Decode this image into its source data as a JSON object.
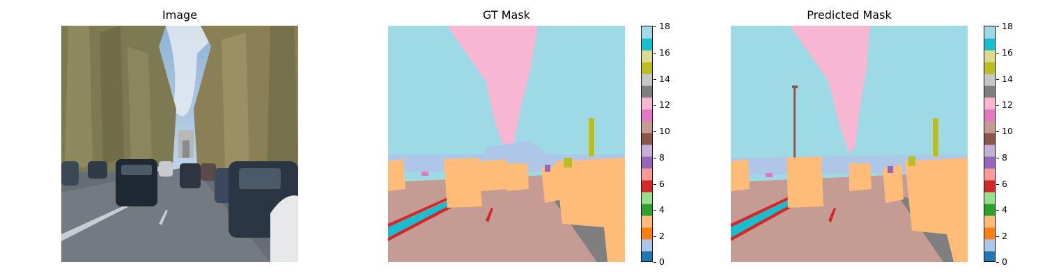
{
  "panels": [
    {
      "title": "Image"
    },
    {
      "title": "GT Mask"
    },
    {
      "title": "Predicted Mask"
    }
  ],
  "colorbar": {
    "ticks": [
      "18",
      "16",
      "14",
      "12",
      "10",
      "8",
      "6",
      "4",
      "2",
      "0"
    ],
    "colors": [
      "#1f77b4",
      "#aec7e8",
      "#ff7f0e",
      "#ffbb78",
      "#2ca02c",
      "#98df8a",
      "#d62728",
      "#ff9896",
      "#9467bd",
      "#c5b0d5",
      "#8c564b",
      "#c49c94",
      "#e377c2",
      "#f7b6d2",
      "#7f7f7f",
      "#c7c7c7",
      "#bcbd22",
      "#dbdb8d",
      "#17becf",
      "#9edae5"
    ]
  }
}
